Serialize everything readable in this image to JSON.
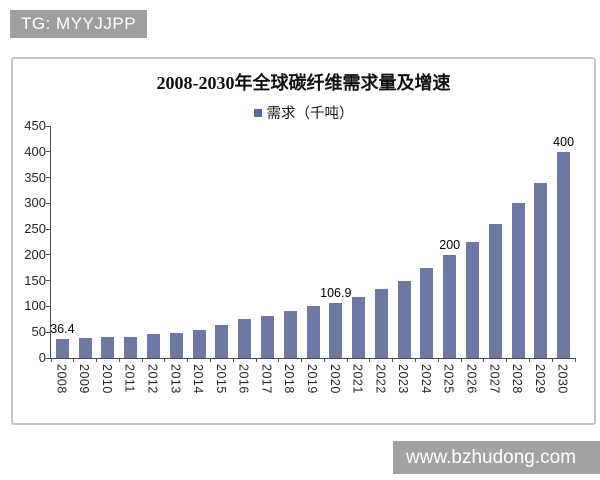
{
  "badges": {
    "tg_label": "TG: MYYJJPP",
    "watermark_label": "www.bzhudong.com"
  },
  "chart_data": {
    "type": "bar",
    "title": "2008-2030年全球碳纤维需求量及增速",
    "legend": {
      "label": "需求（千吨）",
      "position": "top",
      "marker_color": "#5b6b96"
    },
    "categories": [
      "2008",
      "2009",
      "2010",
      "2011",
      "2012",
      "2013",
      "2014",
      "2015",
      "2016",
      "2017",
      "2018",
      "2019",
      "2020",
      "2021",
      "2022",
      "2023",
      "2024",
      "2025",
      "2026",
      "2027",
      "2028",
      "2029",
      "2030"
    ],
    "values": [
      36.4,
      38,
      40,
      41,
      46,
      49,
      53.5,
      65,
      75,
      82,
      91,
      100,
      106.9,
      118,
      133,
      150,
      175,
      200,
      225,
      260,
      300,
      340,
      400
    ],
    "data_labels": {
      "2008": "36.4",
      "2020": "106.9",
      "2025": "200",
      "2030": "400"
    },
    "xlabel": "",
    "ylabel": "",
    "ylim": [
      0,
      450
    ],
    "yticks": [
      0,
      50,
      100,
      150,
      200,
      250,
      300,
      350,
      400,
      450
    ],
    "bar_color": "#6d79a4",
    "axis_color": "#4d4d4d",
    "grid": false
  }
}
